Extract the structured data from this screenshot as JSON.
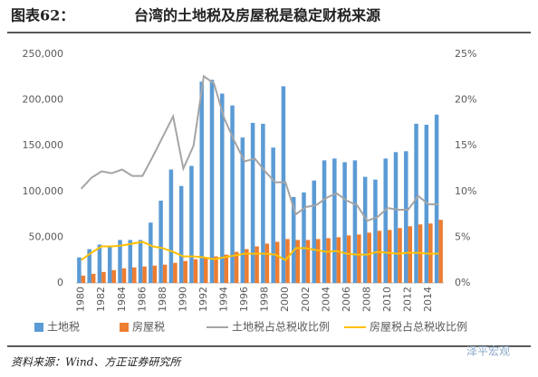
{
  "header": {
    "label": "图表62：",
    "title": "台湾的土地税及房屋税是稳定财税来源"
  },
  "source": "资料来源：Wind、方正证券研究所",
  "watermark": "泽平宏观",
  "chart_data": {
    "type": "bar",
    "categories": [
      "1980",
      null,
      "1982",
      null,
      "1984",
      null,
      "1986",
      null,
      "1988",
      null,
      "1990",
      null,
      "1992",
      null,
      "1994",
      null,
      "1996",
      null,
      "1998",
      null,
      "2000",
      null,
      "2002",
      null,
      "2004",
      null,
      "2006",
      null,
      "2008",
      null,
      "2010",
      null,
      "2012",
      null,
      "2014",
      null
    ],
    "series": [
      {
        "name": "土地税",
        "type": "bar",
        "color": "#5b9bd5",
        "values": [
          28000,
          37000,
          42000,
          40000,
          47000,
          47000,
          47000,
          66000,
          90000,
          124000,
          106000,
          128000,
          220000,
          222000,
          207000,
          194000,
          159000,
          175000,
          174000,
          148000,
          215000,
          94000,
          99000,
          112000,
          134000,
          136000,
          132000,
          134000,
          116000,
          113000,
          136000,
          143000,
          144000,
          174000,
          173000,
          184000
        ]
      },
      {
        "name": "房屋税",
        "type": "bar",
        "color": "#ed7d31",
        "values": [
          8000,
          10000,
          12000,
          14000,
          16000,
          17000,
          18000,
          19000,
          20000,
          22000,
          24000,
          26000,
          27000,
          29000,
          31000,
          34000,
          37000,
          40000,
          43000,
          45000,
          48000,
          47000,
          47000,
          48000,
          49000,
          50000,
          52000,
          53000,
          55000,
          57000,
          58000,
          60000,
          62000,
          64000,
          65000,
          69000
        ]
      },
      {
        "name": "土地税占总税收比例",
        "type": "line",
        "axis": "y2",
        "color": "#a5a5a5",
        "values": [
          10.3,
          11.5,
          12.2,
          12.0,
          12.4,
          11.7,
          11.7,
          13.8,
          16.0,
          18.2,
          12.5,
          15.0,
          22.6,
          21.8,
          18.0,
          15.5,
          13.3,
          13.6,
          12.2,
          11.0,
          11.0,
          7.5,
          8.3,
          8.5,
          9.3,
          9.8,
          9.0,
          8.5,
          6.8,
          7.2,
          8.2,
          8.0,
          8.0,
          9.5,
          8.6,
          8.6
        ]
      },
      {
        "name": "房屋税占总税收比例",
        "type": "line",
        "axis": "y2",
        "color": "#ffc000",
        "values": [
          2.5,
          3.3,
          4.0,
          4.0,
          4.1,
          4.3,
          4.5,
          4.0,
          3.8,
          3.4,
          2.9,
          2.9,
          2.8,
          2.6,
          2.8,
          3.0,
          3.2,
          3.2,
          3.2,
          3.1,
          2.5,
          3.8,
          3.8,
          3.6,
          3.4,
          3.5,
          3.2,
          3.1,
          3.1,
          3.4,
          3.3,
          3.2,
          3.3,
          3.3,
          3.2,
          3.2
        ]
      }
    ],
    "ylim": [
      0,
      250000
    ],
    "yticks": [
      {
        "value": 0,
        "label": "0"
      },
      {
        "value": 50000,
        "label": "50,000"
      },
      {
        "value": 100000,
        "label": "100,000"
      },
      {
        "value": 150000,
        "label": "150,000"
      },
      {
        "value": 200000,
        "label": "200,000"
      },
      {
        "value": 250000,
        "label": "250,000"
      }
    ],
    "y2lim": [
      0,
      25
    ],
    "y2ticks": [
      {
        "value": 0,
        "label": "0%"
      },
      {
        "value": 5,
        "label": "5%"
      },
      {
        "value": 10,
        "label": "10%"
      },
      {
        "value": 15,
        "label": "15%"
      },
      {
        "value": 20,
        "label": "20%"
      },
      {
        "value": 25,
        "label": "25%"
      }
    ],
    "grid": false
  }
}
